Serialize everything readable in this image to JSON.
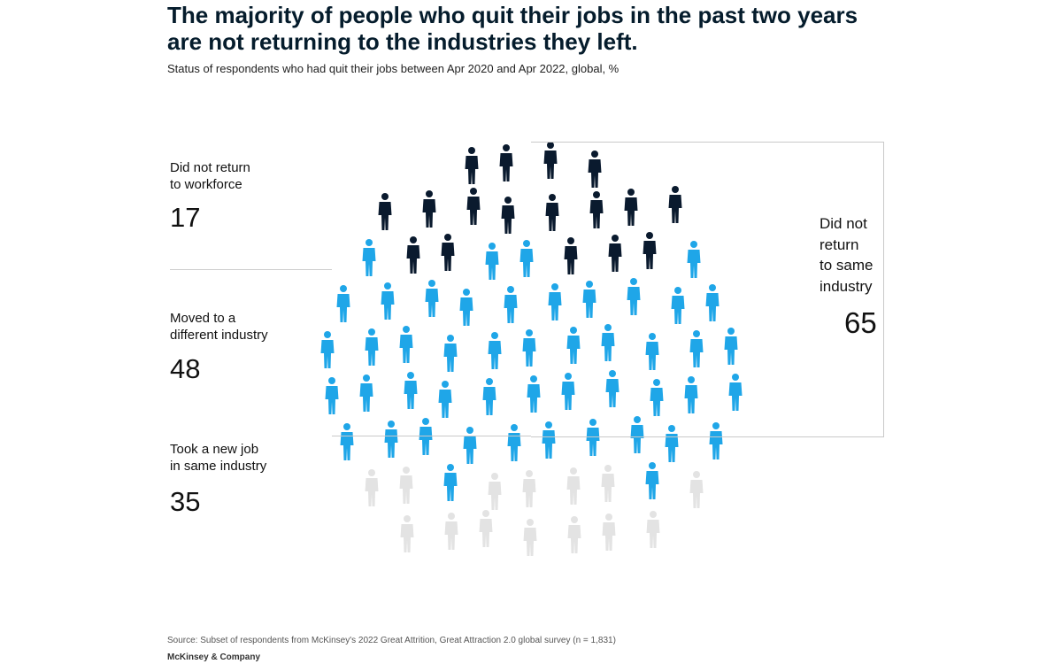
{
  "title": "The majority of people who quit their jobs in the past two years are not returning to the industries they left.",
  "subtitle": "Status of respondents who had quit their jobs between Apr 2020 and Apr 2022, global, %",
  "colors": {
    "did_not_return": "#0a1a2e",
    "different_industry": "#1fa6e8",
    "same_industry": "#e3e3e3",
    "title": "#051c2c"
  },
  "chart_data": {
    "type": "pictogram",
    "unit": "%",
    "segments": [
      {
        "label": "Did not return to workforce",
        "label_line1": "Did not return",
        "label_line2": "to workforce",
        "value": 17,
        "color": "#0a1a2e"
      },
      {
        "label": "Moved to a different industry",
        "label_line1": "Moved to a",
        "label_line2": "different industry",
        "value": 48,
        "color": "#1fa6e8"
      },
      {
        "label": "Took a new job in same industry",
        "label_line1": "Took a new job",
        "label_line2": "in same industry",
        "value": 35,
        "color": "#e3e3e3"
      }
    ],
    "bracket": {
      "label_lines": [
        "Did not",
        "return",
        "to same",
        "industry"
      ],
      "value": 65
    }
  },
  "source": "Source: Subset of respondents from McKinsey's 2022 Great Attrition, Great Attraction 2.0 global survey (n = 1,831)",
  "brand": "McKinsey & Company"
}
